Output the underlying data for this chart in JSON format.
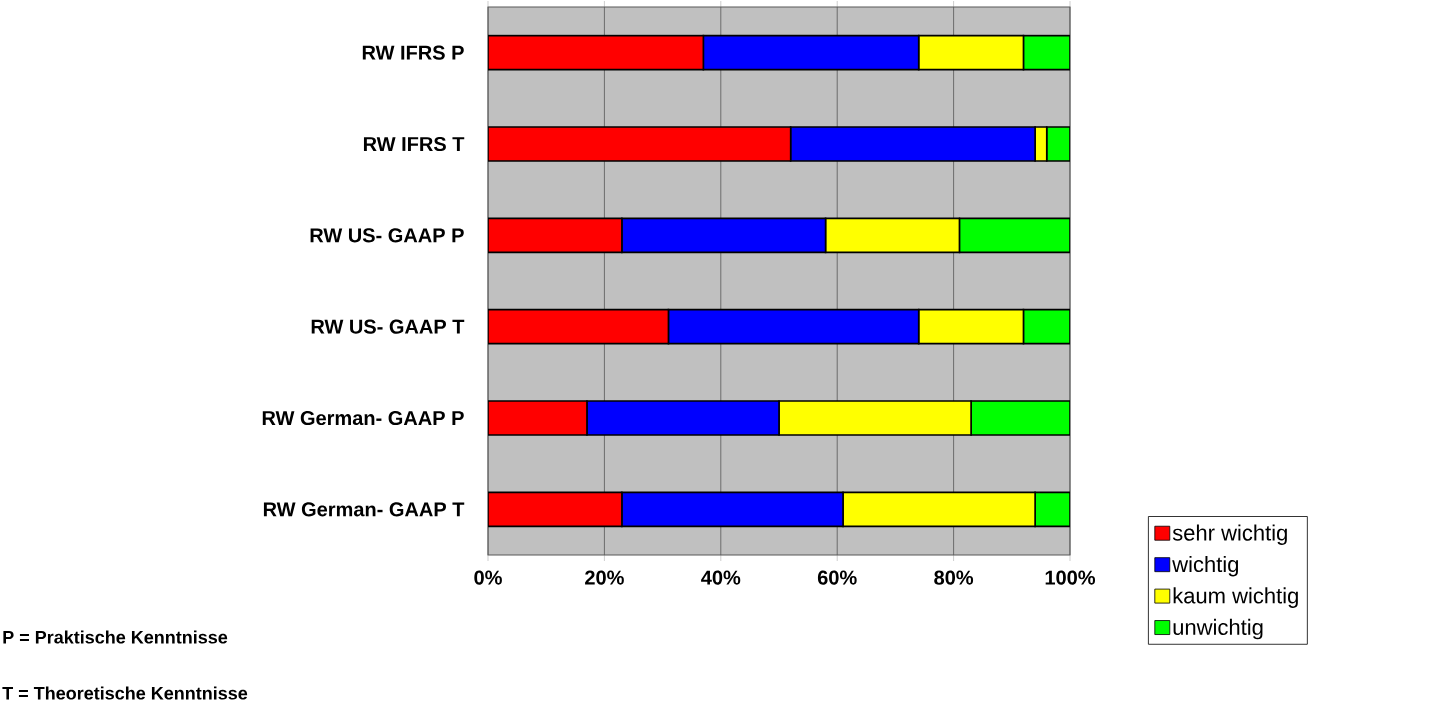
{
  "chart_data": {
    "type": "bar",
    "orientation": "horizontal",
    "stacked": true,
    "categories": [
      "RW IFRS P",
      "RW IFRS T",
      "RW US- GAAP P",
      "RW US- GAAP T",
      "RW German- GAAP P",
      "RW German- GAAP T"
    ],
    "series": [
      {
        "name": "sehr wichtig",
        "color": "#ff0000",
        "values": [
          37,
          52,
          23,
          31,
          17,
          23
        ]
      },
      {
        "name": "wichtig",
        "color": "#0000ff",
        "values": [
          37,
          42,
          35,
          43,
          33,
          38
        ]
      },
      {
        "name": "kaum wichtig",
        "color": "#ffff00",
        "values": [
          18,
          2,
          23,
          18,
          33,
          33
        ]
      },
      {
        "name": "unwichtig",
        "color": "#00ff00",
        "values": [
          8,
          4,
          19,
          8,
          17,
          6
        ]
      }
    ],
    "xlim": [
      0,
      100
    ],
    "xticks": [
      {
        "value": 0,
        "label": "0%"
      },
      {
        "value": 20,
        "label": "20%"
      },
      {
        "value": 40,
        "label": "40%"
      },
      {
        "value": 60,
        "label": "60%"
      },
      {
        "value": 80,
        "label": "80%"
      },
      {
        "value": 100,
        "label": "100%"
      }
    ],
    "grid": "x",
    "legend": "bottom right",
    "annotations": [
      "P = Praktische Kenntnisse",
      "T = Theoretische Kenntnisse"
    ]
  }
}
